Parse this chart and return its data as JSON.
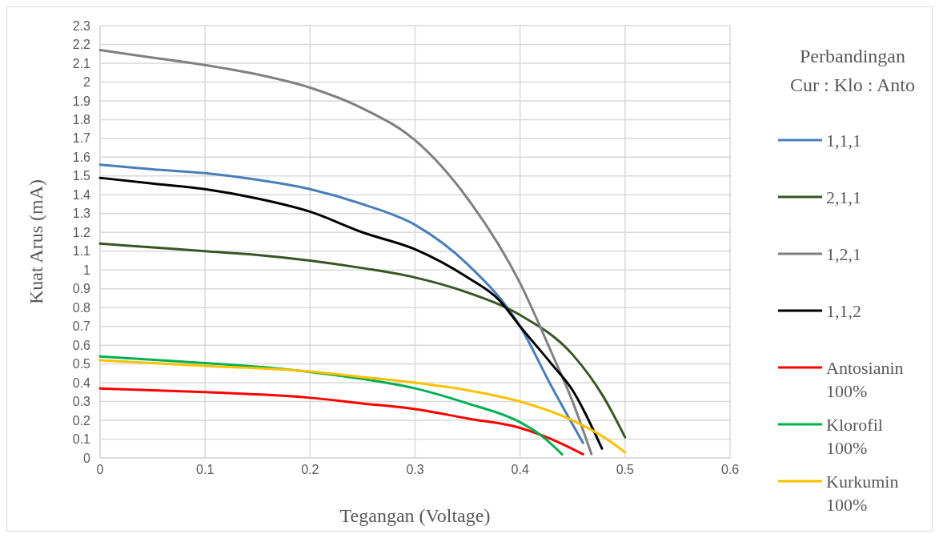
{
  "chart_data": {
    "type": "line",
    "xlabel": "Tegangan (Voltage)",
    "ylabel": "Kuat Arus (mA)",
    "legend_title": "Perbandingan Cur : Klo : Anto",
    "legend": "right",
    "grid": true,
    "xlim": [
      0,
      0.6
    ],
    "xticks": [
      0,
      0.1,
      0.2,
      0.3,
      0.4,
      0.5,
      0.6
    ],
    "ylim": [
      0,
      2.3
    ],
    "yticks": [
      0,
      0.1,
      0.2,
      0.3,
      0.4,
      0.5,
      0.6,
      0.7,
      0.8,
      0.9,
      1,
      1.1,
      1.2,
      1.3,
      1.4,
      1.5,
      1.6,
      1.7,
      1.8,
      1.9,
      2,
      2.1,
      2.2,
      2.3
    ],
    "series": [
      {
        "name": "1,1,1",
        "color": "#4a7ebb",
        "x": [
          0,
          0.05,
          0.1,
          0.15,
          0.2,
          0.25,
          0.3,
          0.35,
          0.4,
          0.43,
          0.46
        ],
        "values": [
          1.56,
          1.535,
          1.515,
          1.48,
          1.43,
          1.35,
          1.24,
          1.03,
          0.7,
          0.38,
          0.08
        ]
      },
      {
        "name": "2,1,1",
        "color": "#375623",
        "x": [
          0,
          0.05,
          0.1,
          0.15,
          0.2,
          0.25,
          0.3,
          0.35,
          0.4,
          0.45,
          0.48,
          0.5
        ],
        "values": [
          1.14,
          1.12,
          1.1,
          1.08,
          1.05,
          1.01,
          0.96,
          0.88,
          0.76,
          0.55,
          0.32,
          0.11
        ]
      },
      {
        "name": "1,2,1",
        "color": "#808080",
        "x": [
          0,
          0.05,
          0.1,
          0.15,
          0.2,
          0.25,
          0.3,
          0.35,
          0.4,
          0.43,
          0.45,
          0.468
        ],
        "values": [
          2.17,
          2.13,
          2.09,
          2.04,
          1.97,
          1.86,
          1.69,
          1.38,
          0.93,
          0.56,
          0.3,
          0.02
        ]
      },
      {
        "name": "1,1,2",
        "color": "#000000",
        "x": [
          0,
          0.05,
          0.1,
          0.15,
          0.2,
          0.25,
          0.3,
          0.35,
          0.38,
          0.4,
          0.43,
          0.45,
          0.478
        ],
        "values": [
          1.49,
          1.46,
          1.43,
          1.38,
          1.31,
          1.2,
          1.11,
          0.96,
          0.84,
          0.7,
          0.5,
          0.36,
          0.05
        ]
      },
      {
        "name": "Antosianin 100%",
        "color": "#ff0000",
        "x": [
          0,
          0.1,
          0.2,
          0.25,
          0.3,
          0.35,
          0.4,
          0.43,
          0.46
        ],
        "values": [
          0.37,
          0.35,
          0.32,
          0.29,
          0.26,
          0.21,
          0.16,
          0.1,
          0.02
        ]
      },
      {
        "name": "Klorofil 100%",
        "color": "#00b050",
        "x": [
          0,
          0.1,
          0.18,
          0.25,
          0.3,
          0.35,
          0.4,
          0.42,
          0.44
        ],
        "values": [
          0.54,
          0.505,
          0.47,
          0.42,
          0.37,
          0.29,
          0.19,
          0.12,
          0.02
        ]
      },
      {
        "name": "Kurkumin 100%",
        "color": "#ffc000",
        "x": [
          0,
          0.1,
          0.2,
          0.25,
          0.3,
          0.35,
          0.4,
          0.45,
          0.48,
          0.5
        ],
        "values": [
          0.52,
          0.49,
          0.46,
          0.43,
          0.4,
          0.36,
          0.3,
          0.2,
          0.11,
          0.03
        ]
      }
    ]
  }
}
